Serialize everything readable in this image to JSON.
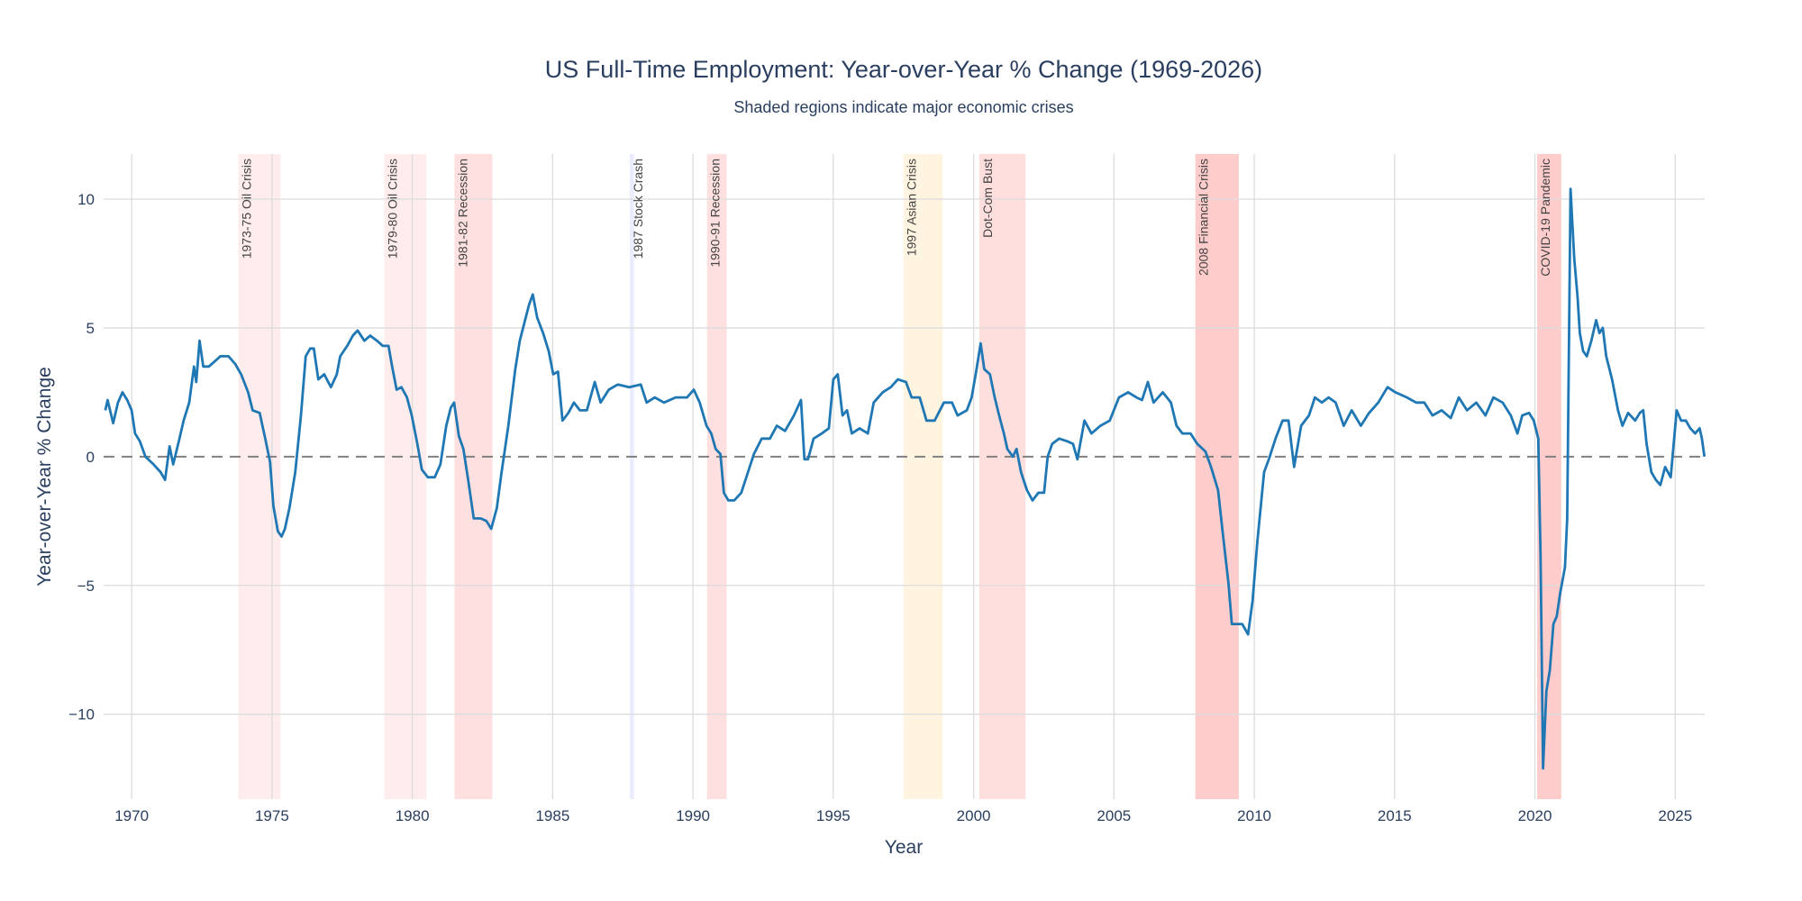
{
  "chart_data": {
    "type": "line",
    "title": "US Full-Time Employment: Year-over-Year % Change (1969-2026)",
    "subtitle": "Shaded regions indicate major economic crises",
    "xlabel": "Year",
    "ylabel": "Year-over-Year % Change",
    "xlim": [
      1969.0,
      2026.05
    ],
    "ylim": [
      -13.3,
      11.75
    ],
    "x_ticks": [
      1970,
      1975,
      1980,
      1985,
      1990,
      1995,
      2000,
      2005,
      2010,
      2015,
      2020,
      2025
    ],
    "y_ticks": [
      -10,
      -5,
      0,
      5,
      10
    ],
    "y_tick_labels": [
      "−10",
      "−5",
      "0",
      "5",
      "10"
    ],
    "grid": true,
    "zero_line": {
      "value": 0,
      "style": "dashed",
      "color": "#808080"
    },
    "line_color": "#1f77b4",
    "crises": [
      {
        "label": "1973-75 Oil Crisis",
        "start": 1973.8,
        "end": 1975.3,
        "color": "rgba(255,0,0,0.07)"
      },
      {
        "label": "1979-80 Oil Crisis",
        "start": 1979.0,
        "end": 1980.5,
        "color": "rgba(255,0,0,0.07)"
      },
      {
        "label": "1981-82 Recession",
        "start": 1981.5,
        "end": 1982.85,
        "color": "rgba(255,0,0,0.12)"
      },
      {
        "label": "1987 Stock Crash",
        "start": 1987.75,
        "end": 1987.9,
        "color": "rgba(100,100,255,0.12)"
      },
      {
        "label": "1990-91 Recession",
        "start": 1990.5,
        "end": 1991.2,
        "color": "rgba(255,0,0,0.12)"
      },
      {
        "label": "1997 Asian Crisis",
        "start": 1997.5,
        "end": 1998.9,
        "color": "rgba(255,165,0,0.12)"
      },
      {
        "label": "Dot-Com Bust",
        "start": 2000.2,
        "end": 2001.85,
        "color": "rgba(255,0,0,0.13)"
      },
      {
        "label": "2008 Financial Crisis",
        "start": 2007.9,
        "end": 2009.45,
        "color": "rgba(255,0,0,0.2)"
      },
      {
        "label": "COVID-19 Pandemic",
        "start": 2020.08,
        "end": 2020.94,
        "color": "rgba(255,0,0,0.2)"
      }
    ],
    "series": [
      {
        "x": [
          1969.06,
          1969.14,
          1969.34,
          1969.51,
          1969.67,
          1969.84,
          1970.0,
          1970.12,
          1970.29,
          1970.49,
          1970.78,
          1971.03,
          1971.19,
          1971.35,
          1971.48,
          1971.68,
          1971.85,
          1972.05,
          1972.22,
          1972.3,
          1972.42,
          1972.55,
          1972.75,
          1972.96,
          1973.16,
          1973.45,
          1973.69,
          1973.9,
          1974.15,
          1974.31,
          1974.56,
          1974.76,
          1974.93,
          1975.05,
          1975.21,
          1975.34,
          1975.46,
          1975.62,
          1975.83,
          1976.03,
          1976.2,
          1976.36,
          1976.49,
          1976.65,
          1976.86,
          1977.1,
          1977.31,
          1977.43,
          1977.68,
          1977.88,
          1978.05,
          1978.29,
          1978.5,
          1978.74,
          1978.95,
          1979.15,
          1979.28,
          1979.44,
          1979.61,
          1979.81,
          1979.98,
          1980.18,
          1980.34,
          1980.55,
          1980.8,
          1981.0,
          1981.21,
          1981.37,
          1981.49,
          1981.66,
          1981.82,
          1981.99,
          1982.19,
          1982.44,
          1982.64,
          1982.81,
          1983.01,
          1983.18,
          1983.42,
          1983.67,
          1983.83,
          1984.04,
          1984.16,
          1984.29,
          1984.45,
          1984.66,
          1984.86,
          1985.02,
          1985.19,
          1985.35,
          1985.56,
          1985.76,
          1985.97,
          1986.22,
          1986.5,
          1986.71,
          1987.0,
          1987.32,
          1987.73,
          1988.14,
          1988.35,
          1988.64,
          1988.97,
          1989.38,
          1989.79,
          1990.03,
          1990.24,
          1990.48,
          1990.65,
          1990.81,
          1990.98,
          1991.1,
          1991.26,
          1991.47,
          1991.72,
          1991.96,
          1992.17,
          1992.45,
          1992.74,
          1992.99,
          1993.28,
          1993.6,
          1993.85,
          1993.97,
          1994.1,
          1994.3,
          1994.59,
          1994.84,
          1995.0,
          1995.16,
          1995.33,
          1995.49,
          1995.66,
          1995.94,
          1996.23,
          1996.44,
          1996.76,
          1997.05,
          1997.3,
          1997.59,
          1997.79,
          1998.08,
          1998.32,
          1998.61,
          1998.94,
          1999.23,
          1999.43,
          1999.76,
          1999.93,
          2000.09,
          2000.25,
          2000.38,
          2000.58,
          2000.75,
          2000.91,
          2001.08,
          2001.2,
          2001.4,
          2001.53,
          2001.69,
          2001.9,
          2002.1,
          2002.31,
          2002.51,
          2002.64,
          2002.8,
          2003.05,
          2003.33,
          2003.54,
          2003.7,
          2003.95,
          2004.2,
          2004.52,
          2004.85,
          2005.18,
          2005.51,
          2005.8,
          2006.0,
          2006.21,
          2006.41,
          2006.74,
          2007.03,
          2007.23,
          2007.44,
          2007.73,
          2007.97,
          2008.26,
          2008.46,
          2008.71,
          2008.87,
          2009.08,
          2009.2,
          2009.37,
          2009.57,
          2009.78,
          2009.94,
          2010.11,
          2010.35,
          2010.52,
          2010.76,
          2011.01,
          2011.22,
          2011.42,
          2011.67,
          2011.95,
          2012.16,
          2012.41,
          2012.65,
          2012.9,
          2013.19,
          2013.47,
          2013.8,
          2014.09,
          2014.42,
          2014.75,
          2015.03,
          2015.44,
          2015.77,
          2016.06,
          2016.35,
          2016.68,
          2017.0,
          2017.29,
          2017.58,
          2017.91,
          2018.24,
          2018.52,
          2018.85,
          2019.14,
          2019.38,
          2019.55,
          2019.79,
          2019.96,
          2020.12,
          2020.2,
          2020.29,
          2020.41,
          2020.53,
          2020.66,
          2020.78,
          2020.9,
          2021.07,
          2021.15,
          2021.27,
          2021.4,
          2021.52,
          2021.6,
          2021.72,
          2021.85,
          2022.01,
          2022.18,
          2022.3,
          2022.42,
          2022.54,
          2022.75,
          2022.96,
          2023.12,
          2023.32,
          2023.57,
          2023.74,
          2023.86,
          2023.98,
          2024.15,
          2024.31,
          2024.47,
          2024.64,
          2024.84,
          2025.05,
          2025.21,
          2025.38,
          2025.54,
          2025.71,
          2025.87,
          2025.95,
          2026.04
        ],
        "y": [
          1.8,
          2.2,
          1.3,
          2.1,
          2.5,
          2.2,
          1.8,
          0.9,
          0.6,
          0.0,
          -0.3,
          -0.6,
          -0.9,
          0.4,
          -0.3,
          0.6,
          1.4,
          2.1,
          3.5,
          2.9,
          4.5,
          3.5,
          3.5,
          3.7,
          3.9,
          3.9,
          3.6,
          3.2,
          2.5,
          1.8,
          1.7,
          0.7,
          -0.2,
          -1.9,
          -2.9,
          -3.1,
          -2.8,
          -2.0,
          -0.6,
          1.6,
          3.9,
          4.2,
          4.2,
          3.0,
          3.2,
          2.7,
          3.2,
          3.9,
          4.3,
          4.7,
          4.9,
          4.5,
          4.7,
          4.5,
          4.3,
          4.3,
          3.5,
          2.6,
          2.7,
          2.3,
          1.6,
          0.5,
          -0.5,
          -0.8,
          -0.8,
          -0.3,
          1.2,
          1.9,
          2.1,
          0.8,
          0.3,
          -0.9,
          -2.4,
          -2.4,
          -2.5,
          -2.8,
          -2.0,
          -0.6,
          1.2,
          3.4,
          4.5,
          5.4,
          5.9,
          6.3,
          5.4,
          4.8,
          4.1,
          3.2,
          3.3,
          1.4,
          1.7,
          2.1,
          1.8,
          1.8,
          2.9,
          2.1,
          2.6,
          2.8,
          2.7,
          2.8,
          2.1,
          2.3,
          2.1,
          2.3,
          2.3,
          2.6,
          2.1,
          1.2,
          0.9,
          0.3,
          0.1,
          -1.4,
          -1.7,
          -1.7,
          -1.4,
          -0.6,
          0.1,
          0.7,
          0.7,
          1.2,
          1.0,
          1.6,
          2.2,
          -0.1,
          -0.1,
          0.7,
          0.9,
          1.1,
          3.0,
          3.2,
          1.6,
          1.8,
          0.9,
          1.1,
          0.9,
          2.1,
          2.5,
          2.7,
          3.0,
          2.9,
          2.3,
          2.3,
          1.4,
          1.4,
          2.1,
          2.1,
          1.6,
          1.8,
          2.3,
          3.3,
          4.4,
          3.4,
          3.2,
          2.3,
          1.6,
          0.9,
          0.3,
          0.0,
          0.3,
          -0.6,
          -1.3,
          -1.7,
          -1.4,
          -1.4,
          0.0,
          0.5,
          0.7,
          0.6,
          0.5,
          -0.1,
          1.4,
          0.9,
          1.2,
          1.4,
          2.3,
          2.5,
          2.3,
          2.2,
          2.9,
          2.1,
          2.5,
          2.1,
          1.2,
          0.9,
          0.9,
          0.5,
          0.2,
          -0.4,
          -1.3,
          -2.9,
          -4.9,
          -6.5,
          -6.5,
          -6.5,
          -6.9,
          -5.6,
          -3.3,
          -0.6,
          -0.1,
          0.7,
          1.4,
          1.4,
          -0.4,
          1.2,
          1.6,
          2.3,
          2.1,
          2.3,
          2.1,
          1.2,
          1.8,
          1.2,
          1.7,
          2.1,
          2.7,
          2.5,
          2.3,
          2.1,
          2.1,
          1.6,
          1.8,
          1.5,
          2.3,
          1.8,
          2.1,
          1.6,
          2.3,
          2.1,
          1.6,
          0.9,
          1.6,
          1.7,
          1.4,
          0.7,
          -3.8,
          -12.1,
          -9.1,
          -8.3,
          -6.5,
          -6.2,
          -5.3,
          -4.3,
          -2.4,
          10.4,
          7.7,
          6.2,
          4.8,
          4.1,
          3.9,
          4.5,
          5.3,
          4.8,
          5.0,
          3.9,
          3.0,
          1.8,
          1.2,
          1.7,
          1.4,
          1.7,
          1.8,
          0.5,
          -0.6,
          -0.9,
          -1.1,
          -0.4,
          -0.8,
          1.8,
          1.4,
          1.4,
          1.1,
          0.9,
          1.1,
          0.7,
          0.0
        ]
      }
    ]
  }
}
